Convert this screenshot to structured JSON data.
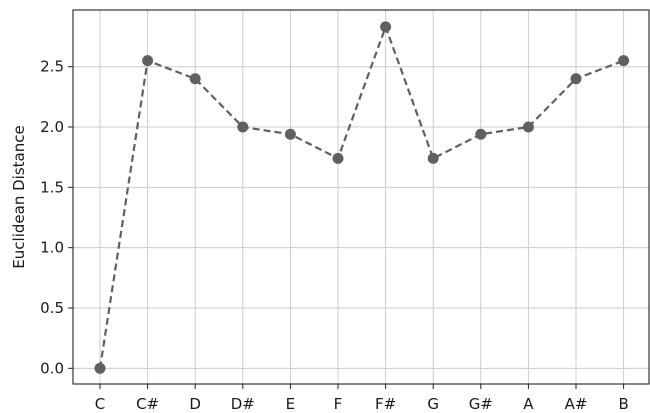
{
  "chart_data": {
    "type": "line",
    "title": "",
    "xlabel": "",
    "ylabel": "Euclidean Distance",
    "categories": [
      "C",
      "C#",
      "D",
      "D#",
      "E",
      "F",
      "F#",
      "G",
      "G#",
      "A",
      "A#",
      "B"
    ],
    "series": [
      {
        "values": [
          0.0,
          2.55,
          2.4,
          2.0,
          1.94,
          1.74,
          2.83,
          1.74,
          1.94,
          2.0,
          2.4,
          2.55
        ],
        "color": "#606060",
        "line_style": "dashed",
        "marker": "circle"
      }
    ],
    "yticks": [
      "0.0",
      "0.5",
      "1.0",
      "1.5",
      "2.0",
      "2.5"
    ],
    "ylim": [
      -0.13,
      2.97
    ],
    "grid": true,
    "legend": "none"
  }
}
